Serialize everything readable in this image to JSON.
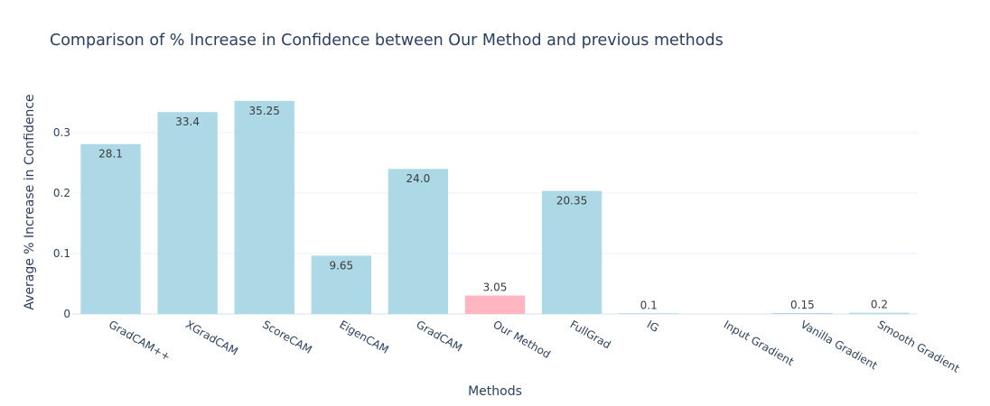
{
  "chart_data": {
    "type": "bar",
    "title": "Comparison of % Increase in Confidence between Our Method and previous methods",
    "xlabel": "Methods",
    "ylabel": "Average % Increase in Confidence",
    "ylim": [
      0,
      0.37
    ],
    "yticks": [
      0,
      0.1,
      0.2,
      0.3
    ],
    "ytick_labels": [
      "0",
      "0.1",
      "0.2",
      "0.3"
    ],
    "grid": true,
    "categories": [
      "GradCAM++",
      "XGradCAM",
      "ScoreCAM",
      "EigenCAM",
      "GradCAM",
      "Our Method",
      "FullGrad",
      "IG",
      "Input Gradient",
      "Vanilla Gradient",
      "Smooth Gradient"
    ],
    "values": [
      0.281,
      0.334,
      0.3525,
      0.0965,
      0.24,
      0.0305,
      0.2035,
      0.001,
      0.0,
      0.0015,
      0.002
    ],
    "data_labels": [
      "28.1",
      "33.4",
      "35.25",
      "9.65",
      "24.0",
      "3.05",
      "20.35",
      "0.1",
      "",
      "0.15",
      "0.2"
    ],
    "colors": [
      "#add8e6",
      "#add8e6",
      "#add8e6",
      "#add8e6",
      "#add8e6",
      "#ffb6c1",
      "#add8e6",
      "#add8e6",
      "#add8e6",
      "#add8e6",
      "#add8e6"
    ]
  }
}
